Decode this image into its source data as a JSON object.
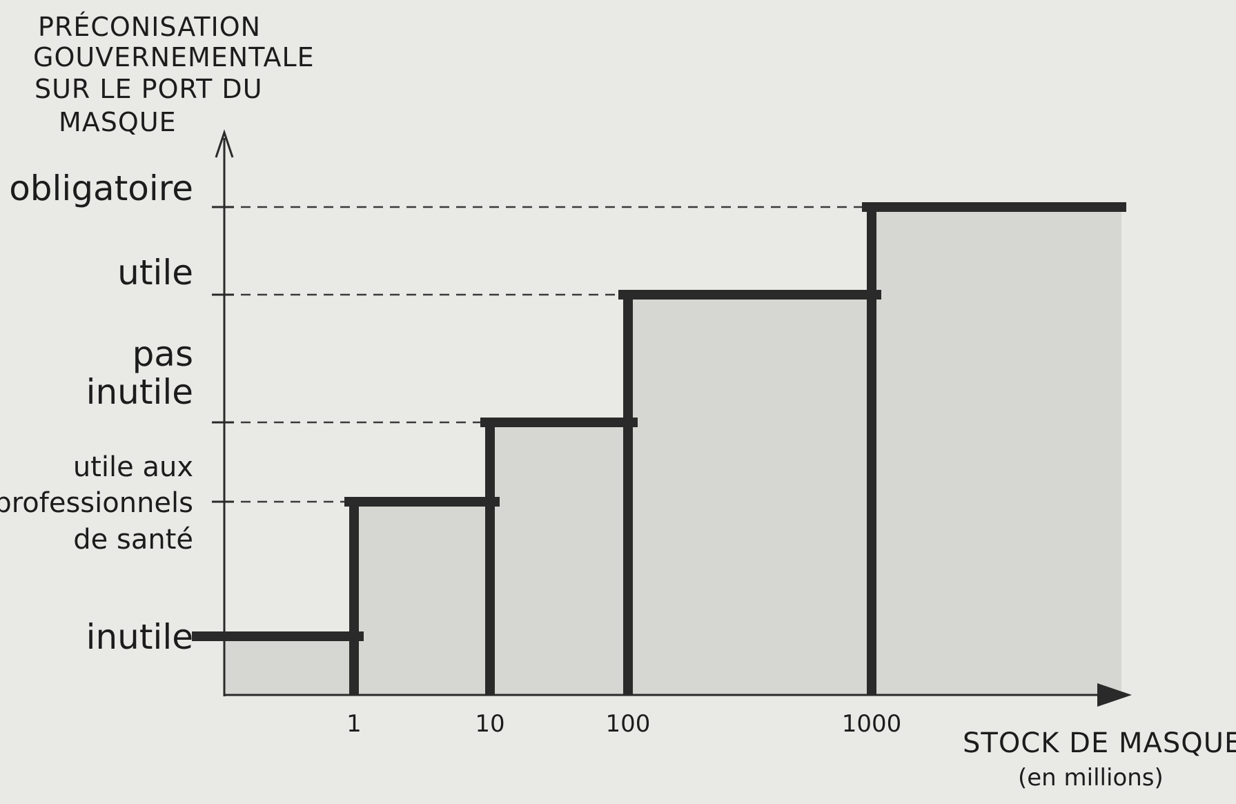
{
  "chart_data": {
    "type": "bar",
    "title": "",
    "ylabel_lines": [
      "PRÉCONISATION",
      "GOUVERNEMENTALE",
      "SUR LE PORT DU",
      "MASQUE"
    ],
    "xlabel": "STOCK DE MASQUES",
    "xlabel_unit": "(en millions)",
    "x_scale": "log",
    "x_ticks": [
      "1",
      "10",
      "100",
      "1000"
    ],
    "y_categories": [
      {
        "lines": [
          "inutile"
        ]
      },
      {
        "lines": [
          "utile aux",
          "professionnels",
          "de santé"
        ]
      },
      {
        "lines": [
          "pas",
          "inutile"
        ]
      },
      {
        "lines": [
          "utile"
        ]
      },
      {
        "lines": [
          "obligatoire"
        ]
      }
    ],
    "steps": [
      {
        "x_from": 0,
        "x_to": 1,
        "level": 0
      },
      {
        "x_from": 1,
        "x_to": 10,
        "level": 1
      },
      {
        "x_from": 10,
        "x_to": 100,
        "level": 2
      },
      {
        "x_from": 100,
        "x_to": 1000,
        "level": 3
      },
      {
        "x_from": 1000,
        "x_to": null,
        "level": 4
      }
    ],
    "grid": false,
    "legend": "none",
    "colors": {
      "fill": "#d6d6d2",
      "line": "#2a2a2a",
      "axis": "#2a2a2a"
    }
  }
}
